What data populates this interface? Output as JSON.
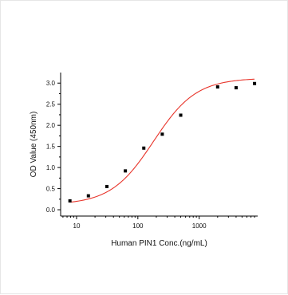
{
  "chart_data": {
    "type": "scatter",
    "xlabel": "Human PIN1 Conc.(ng/mL)",
    "ylabel": "OD Value (450nm)",
    "x_scale": "log",
    "xlim": [
      5.5,
      9000
    ],
    "ylim": [
      -0.15,
      3.25
    ],
    "x_ticks": [
      10,
      100,
      1000
    ],
    "x_tick_labels": [
      "10",
      "100",
      "1000"
    ],
    "y_ticks": [
      0,
      0.5,
      1.0,
      1.5,
      2.0,
      2.5,
      3.0
    ],
    "y_tick_labels": [
      "0.0",
      "0.5",
      "1.0",
      "1.5",
      "2.0",
      "2.5",
      "3.0"
    ],
    "grid": false,
    "series": [
      {
        "type": "scatter",
        "color": "#000000",
        "x": [
          7.8,
          15.6,
          31.25,
          62.5,
          125,
          250,
          500,
          2000,
          4000,
          8000
        ],
        "y": [
          0.21,
          0.33,
          0.55,
          0.92,
          1.46,
          1.79,
          2.24,
          2.91,
          2.89,
          2.99
        ]
      },
      {
        "type": "line",
        "color": "#e8352b",
        "fit": {
          "A1": 0.12,
          "A2": 3.12,
          "x0": 180,
          "p": 1.25
        }
      }
    ]
  }
}
